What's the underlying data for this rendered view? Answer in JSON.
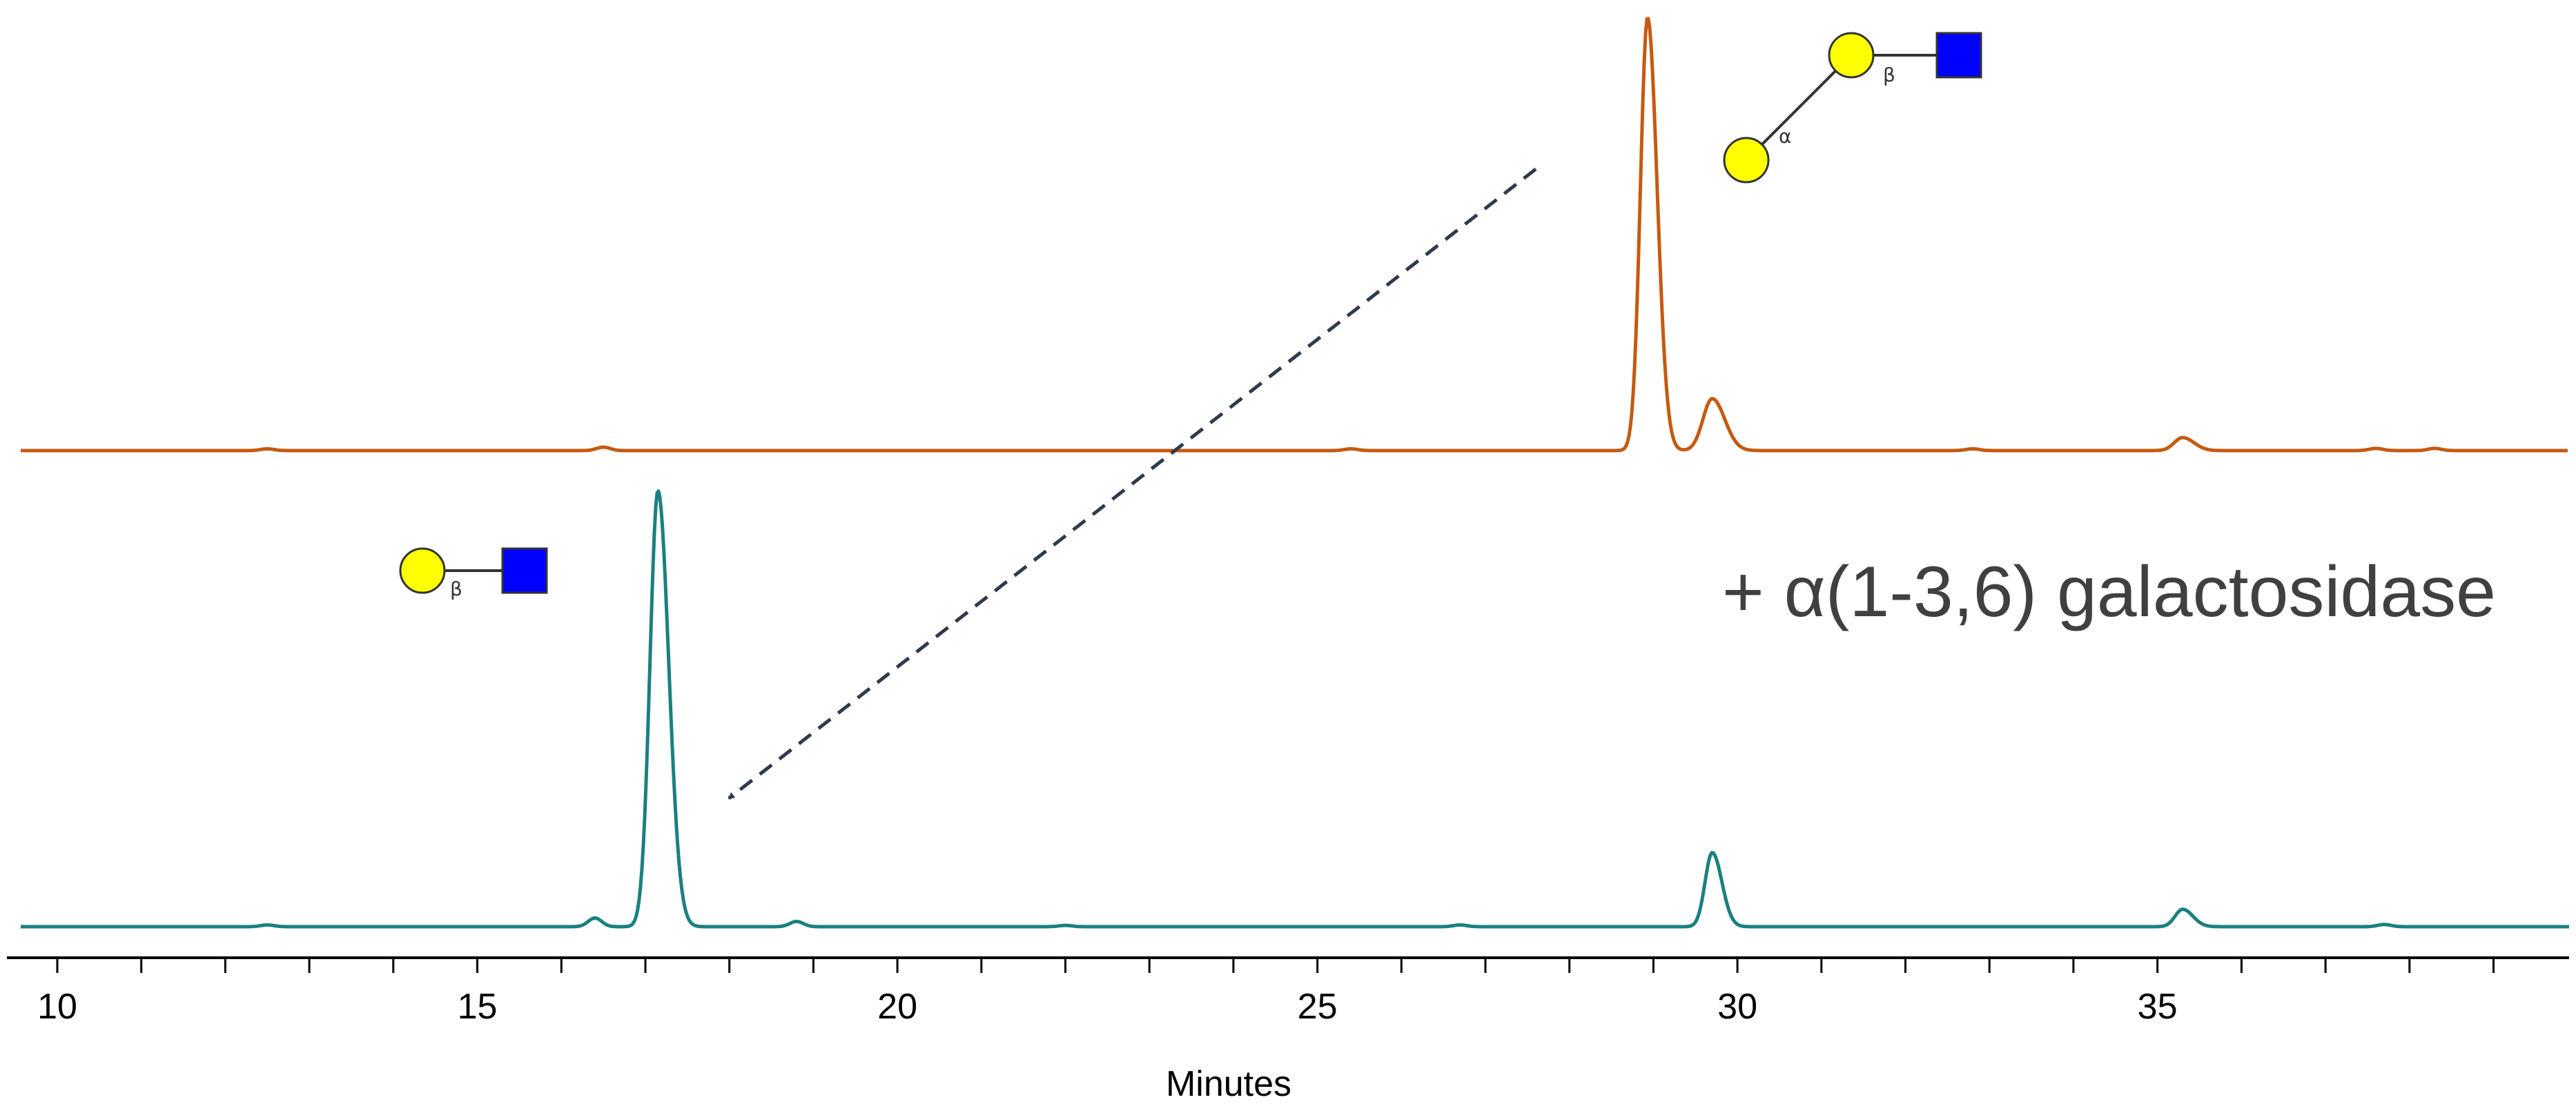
{
  "chart_data": {
    "type": "line",
    "title": "",
    "xlabel": "Minutes",
    "ylabel": "",
    "xlim": [
      9.4,
      39.9
    ],
    "x_ticks": [
      10,
      15,
      20,
      25,
      30,
      35
    ],
    "x_minor_step": 1,
    "grid": false,
    "colors": {
      "top": "#C55A11",
      "bottom": "#1A8080",
      "axis": "#000000",
      "arrow": "#2F3A4A",
      "galactose": "#FFFF00",
      "glcnac": "#0000FF"
    },
    "series": [
      {
        "key": "top",
        "baseline_noise": [
          [
            12.5,
            0.004
          ],
          [
            16.5,
            0.008
          ],
          [
            25.4,
            0.004
          ],
          [
            32.8,
            0.004
          ],
          [
            37.6,
            0.005
          ],
          [
            38.3,
            0.005
          ]
        ],
        "peaks": [
          {
            "rt": 28.93,
            "height": 1.0,
            "width": 0.085
          },
          {
            "rt": 29.7,
            "height": 0.12,
            "width": 0.11
          },
          {
            "rt": 35.3,
            "height": 0.03,
            "width": 0.1
          }
        ]
      },
      {
        "key": "bottom",
        "baseline_noise": [
          [
            12.5,
            0.004
          ],
          [
            16.4,
            0.02
          ],
          [
            18.8,
            0.012
          ],
          [
            22.0,
            0.003
          ],
          [
            26.7,
            0.004
          ],
          [
            37.7,
            0.005
          ]
        ],
        "peaks": [
          {
            "rt": 17.15,
            "height": 1.0,
            "width": 0.095
          },
          {
            "rt": 29.7,
            "height": 0.17,
            "width": 0.085
          },
          {
            "rt": 35.3,
            "height": 0.04,
            "width": 0.09
          }
        ]
      }
    ],
    "annotations": {
      "enzyme": "+ α(1-3,6) galactosidase",
      "beta": "β",
      "alpha": "α"
    }
  }
}
